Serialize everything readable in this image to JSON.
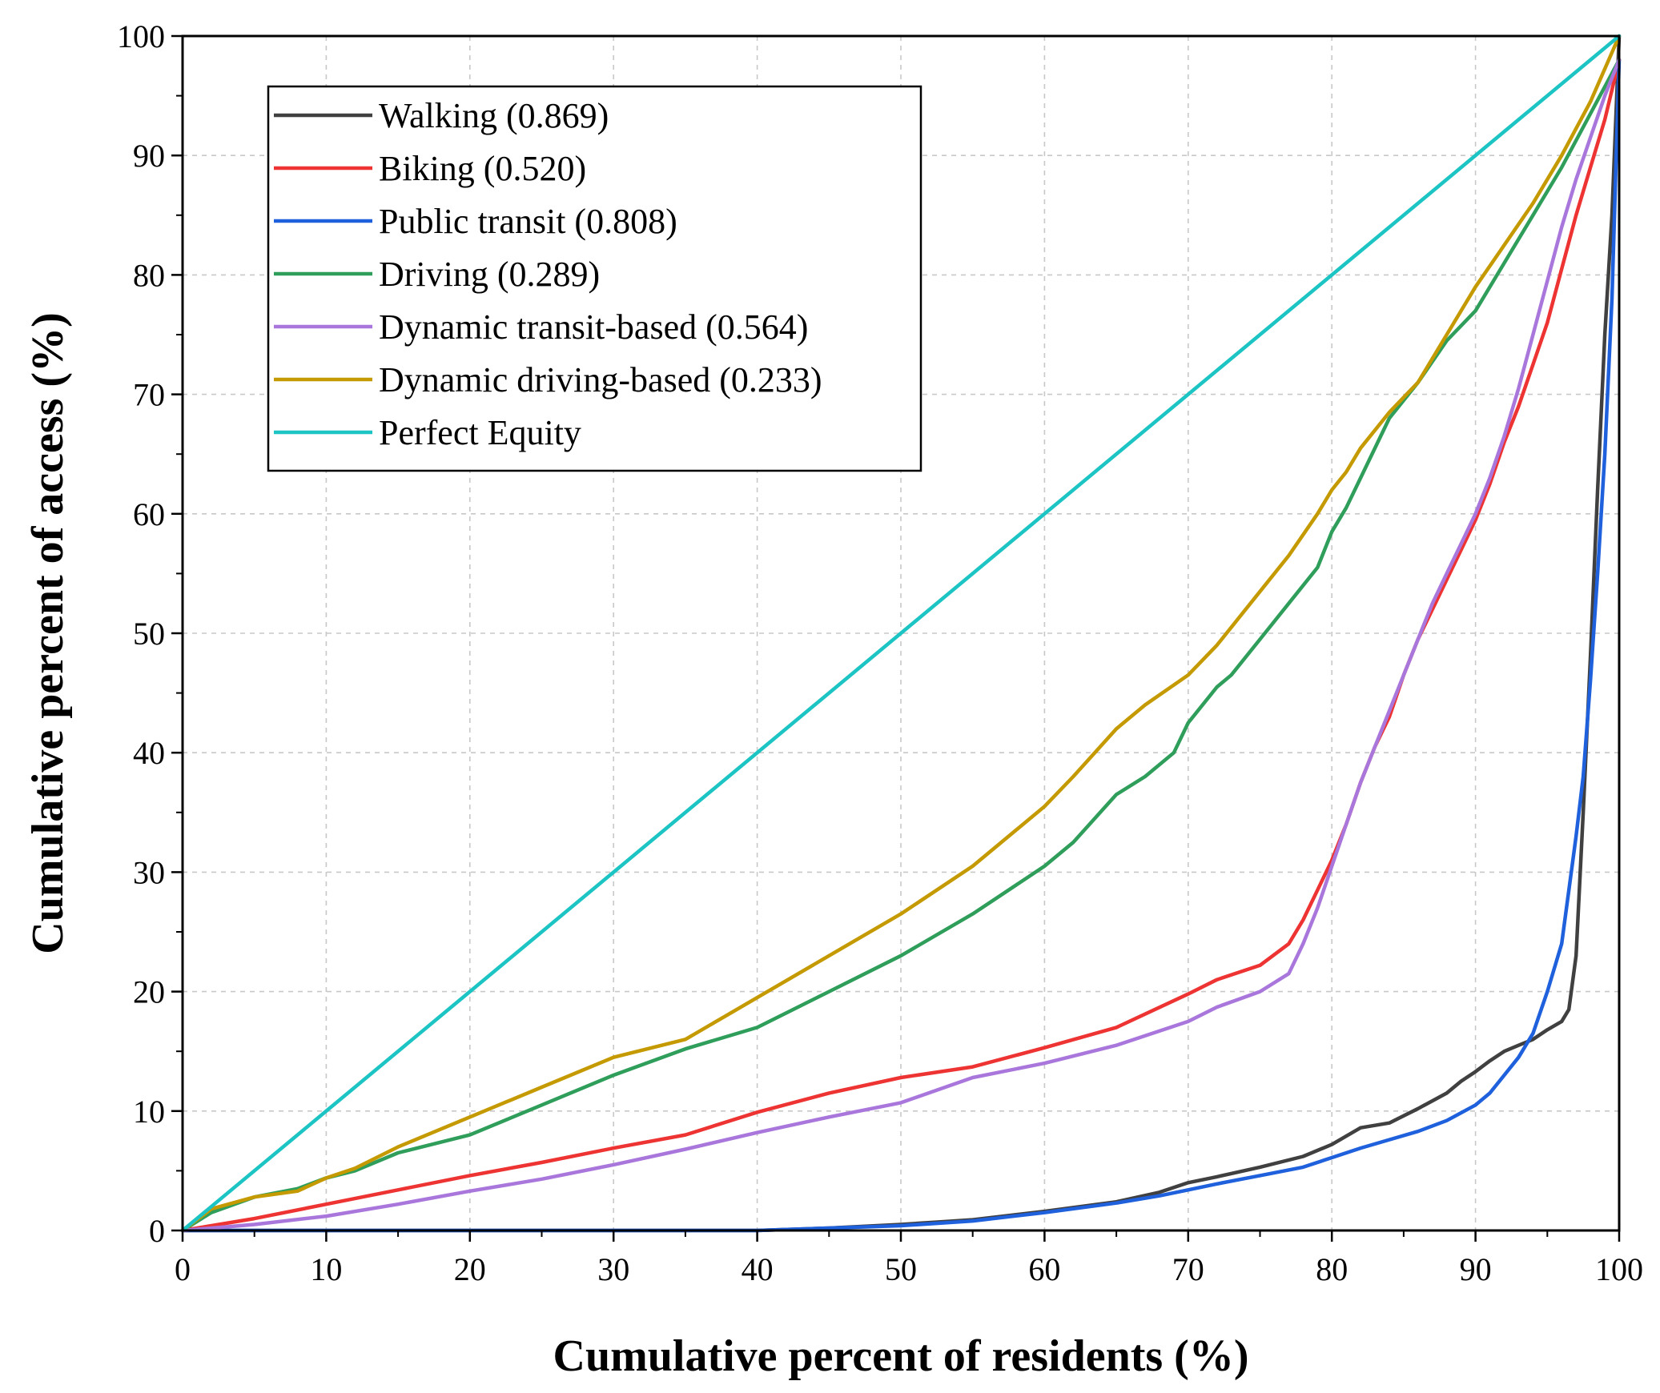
{
  "chart_data": {
    "type": "line",
    "title": "",
    "xlabel": "Cumulative percent of residents (%)",
    "ylabel": "Cumulative percent of access (%)",
    "xlim": [
      0,
      100
    ],
    "ylim": [
      0,
      100
    ],
    "xticks": [
      "0",
      "10",
      "20",
      "30",
      "40",
      "50",
      "60",
      "70",
      "80",
      "90",
      "100"
    ],
    "yticks": [
      "0",
      "10",
      "20",
      "30",
      "40",
      "50",
      "60",
      "70",
      "80",
      "90",
      "100"
    ],
    "grid": true,
    "legend_position": "top-left",
    "series": [
      {
        "name": "Walking (0.869)",
        "color": "#404040",
        "x": [
          0,
          10,
          20,
          30,
          40,
          45,
          50,
          55,
          60,
          65,
          68,
          70,
          72,
          75,
          78,
          80,
          82,
          84,
          86,
          88,
          89,
          90,
          91,
          92,
          93,
          94,
          95,
          96,
          96.5,
          97,
          97.5,
          98,
          98.5,
          99,
          99.5,
          100
        ],
        "y": [
          0,
          0,
          0,
          0,
          0,
          0.2,
          0.5,
          0.9,
          1.6,
          2.4,
          3.2,
          4.0,
          4.5,
          5.3,
          6.2,
          7.2,
          8.6,
          9.0,
          10.2,
          11.5,
          12.5,
          13.3,
          14.2,
          15.0,
          15.5,
          16.0,
          16.8,
          17.5,
          18.5,
          23,
          35,
          48,
          62,
          75,
          85,
          100
        ]
      },
      {
        "name": "Biking (0.520)",
        "color": "#ee3333",
        "x": [
          0,
          5,
          10,
          15,
          20,
          25,
          30,
          35,
          40,
          45,
          50,
          55,
          60,
          65,
          70,
          72,
          75,
          77,
          78,
          79,
          80,
          81,
          82,
          83,
          84,
          85,
          86,
          87,
          88,
          89,
          90,
          91,
          92,
          93,
          94,
          95,
          96,
          97,
          98,
          99,
          100
        ],
        "y": [
          0,
          1.0,
          2.2,
          3.4,
          4.6,
          5.7,
          6.9,
          8.0,
          9.9,
          11.5,
          12.8,
          13.7,
          15.3,
          17.0,
          19.8,
          21.0,
          22.2,
          24.0,
          26.0,
          28.5,
          31.0,
          34.0,
          37.5,
          40.5,
          43.0,
          46.5,
          49.5,
          52.0,
          54.5,
          57.0,
          59.5,
          62.5,
          66.0,
          69.0,
          72.5,
          76.0,
          80.5,
          85.0,
          89.0,
          93.0,
          98.0
        ]
      },
      {
        "name": "Public transit (0.808)",
        "color": "#1f60dc",
        "x": [
          0,
          10,
          20,
          30,
          40,
          45,
          50,
          55,
          60,
          65,
          68,
          70,
          72,
          75,
          78,
          80,
          82,
          84,
          86,
          88,
          90,
          91,
          92,
          93,
          94,
          95,
          96,
          96.5,
          97,
          97.5,
          98,
          98.5,
          99,
          99.5,
          100
        ],
        "y": [
          0,
          0,
          0,
          0,
          0,
          0.2,
          0.4,
          0.8,
          1.5,
          2.3,
          2.9,
          3.4,
          3.9,
          4.6,
          5.3,
          6.1,
          6.9,
          7.6,
          8.3,
          9.2,
          10.5,
          11.5,
          13.0,
          14.5,
          16.5,
          20.0,
          24.0,
          28.5,
          33.0,
          38.0,
          46.0,
          55.0,
          65.0,
          78.0,
          98.0
        ]
      },
      {
        "name": "Driving (0.289)",
        "color": "#2e9e5a",
        "x": [
          0,
          2,
          5,
          8,
          10,
          12,
          15,
          20,
          25,
          30,
          35,
          40,
          45,
          50,
          55,
          60,
          62,
          65,
          67,
          69,
          70,
          72,
          73,
          75,
          77,
          79,
          80,
          81,
          82,
          84,
          86,
          88,
          90,
          92,
          94,
          96,
          98,
          100
        ],
        "y": [
          0,
          1.5,
          2.8,
          3.5,
          4.4,
          5.0,
          6.5,
          8.0,
          10.5,
          13.0,
          15.2,
          17.0,
          20.0,
          23.0,
          26.5,
          30.5,
          32.5,
          36.5,
          38.0,
          40.0,
          42.5,
          45.5,
          46.5,
          49.5,
          52.5,
          55.5,
          58.5,
          60.5,
          63.0,
          68.0,
          71.0,
          74.5,
          77.0,
          81.0,
          85.0,
          89.0,
          93.5,
          98.0
        ]
      },
      {
        "name": "Dynamic transit-based (0.564)",
        "color": "#a977dc",
        "x": [
          0,
          5,
          10,
          15,
          20,
          25,
          30,
          35,
          40,
          45,
          50,
          55,
          60,
          65,
          70,
          72,
          75,
          77,
          78,
          79,
          80,
          81,
          82,
          83,
          84,
          85,
          86,
          87,
          88,
          89,
          90,
          91,
          92,
          93,
          94,
          95,
          96,
          97,
          98,
          99,
          100
        ],
        "y": [
          0,
          0.5,
          1.2,
          2.2,
          3.3,
          4.3,
          5.5,
          6.8,
          8.2,
          9.5,
          10.7,
          12.8,
          14.0,
          15.5,
          17.5,
          18.7,
          20.0,
          21.5,
          24.0,
          27.0,
          30.5,
          34.0,
          37.5,
          40.5,
          43.5,
          46.5,
          49.5,
          52.5,
          55.0,
          57.5,
          60.0,
          63.0,
          66.5,
          70.5,
          75.0,
          79.5,
          84.0,
          88.0,
          91.5,
          95.0,
          98.0
        ]
      },
      {
        "name": "Dynamic driving-based (0.233)",
        "color": "#c49a00",
        "x": [
          0,
          2,
          5,
          8,
          10,
          12,
          15,
          20,
          25,
          30,
          35,
          40,
          45,
          50,
          55,
          60,
          62,
          65,
          67,
          70,
          72,
          75,
          77,
          79,
          80,
          81,
          82,
          84,
          86,
          88,
          90,
          92,
          94,
          96,
          98,
          100
        ],
        "y": [
          0,
          1.8,
          2.8,
          3.3,
          4.4,
          5.2,
          7.0,
          9.5,
          12.0,
          14.5,
          16.0,
          19.5,
          23.0,
          26.5,
          30.5,
          35.5,
          38.0,
          42.0,
          44.0,
          46.5,
          49.0,
          53.5,
          56.5,
          60.0,
          62.0,
          63.5,
          65.5,
          68.5,
          71.0,
          75.0,
          79.0,
          82.5,
          86.0,
          90.0,
          94.5,
          100.0
        ]
      },
      {
        "name": "Perfect Equity",
        "color": "#1cc4c4",
        "x": [
          0,
          100
        ],
        "y": [
          0,
          100
        ]
      }
    ]
  }
}
